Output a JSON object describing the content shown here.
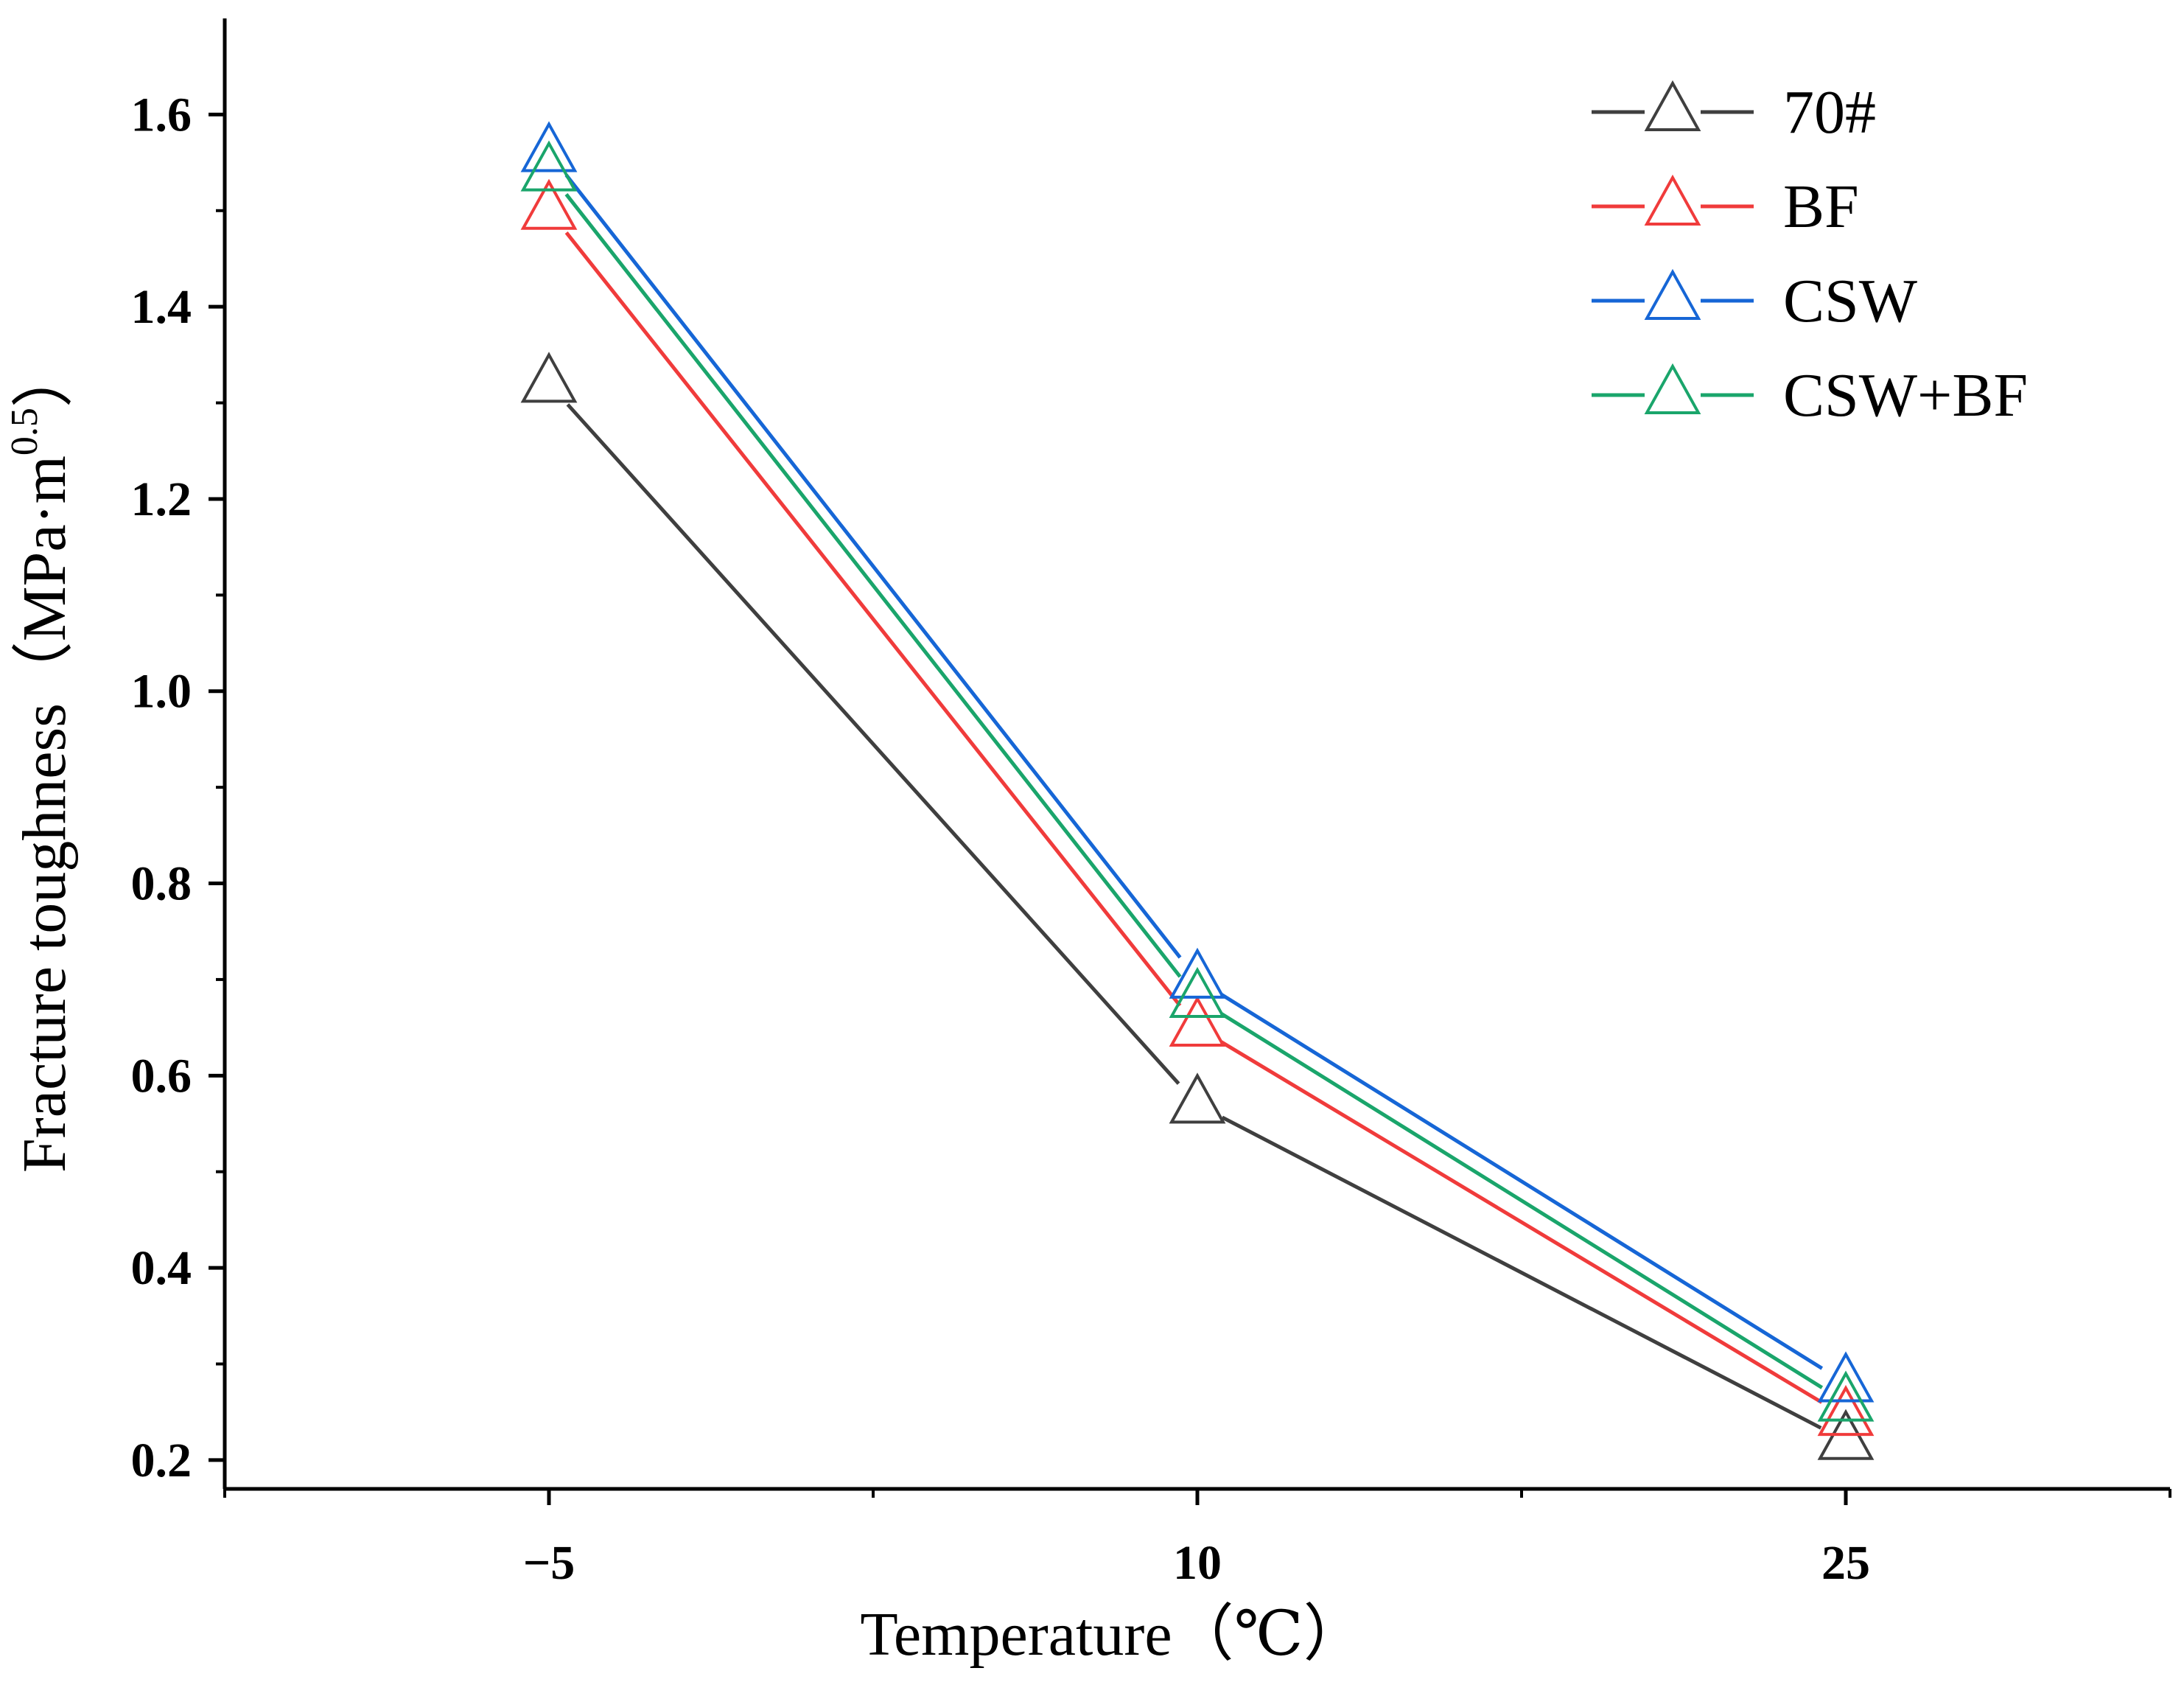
{
  "chart_data": {
    "type": "line",
    "title": "",
    "xlabel": "Temperature（℃）",
    "ylabel": "Fracture toughness（MPa·m",
    "ylabel_superscript": "0.5",
    "ylabel_close": "）",
    "categories": [
      "−5",
      "10",
      "25"
    ],
    "x": [
      -5,
      10,
      25
    ],
    "xlim": [
      -12.5,
      32.5
    ],
    "ylim": [
      0.17,
      1.7
    ],
    "yticks": [
      0.2,
      0.4,
      0.6,
      0.8,
      1.0,
      1.2,
      1.4,
      1.6
    ],
    "ytick_labels": [
      "0.2",
      "0.4",
      "0.6",
      "0.8",
      "1.0",
      "1.2",
      "1.4",
      "1.6"
    ],
    "grid": false,
    "legend_position": "top-right",
    "marker": "open-triangle",
    "series": [
      {
        "name": "70#",
        "color": "#3f3f3f",
        "values": [
          1.32,
          0.57,
          0.22
        ]
      },
      {
        "name": "BF",
        "color": "#f03b3b",
        "values": [
          1.5,
          0.65,
          0.245
        ]
      },
      {
        "name": "CSW",
        "color": "#1666d6",
        "values": [
          1.56,
          0.7,
          0.28
        ]
      },
      {
        "name": "CSW+BF",
        "color": "#1aa56b",
        "values": [
          1.54,
          0.68,
          0.26
        ]
      }
    ]
  }
}
